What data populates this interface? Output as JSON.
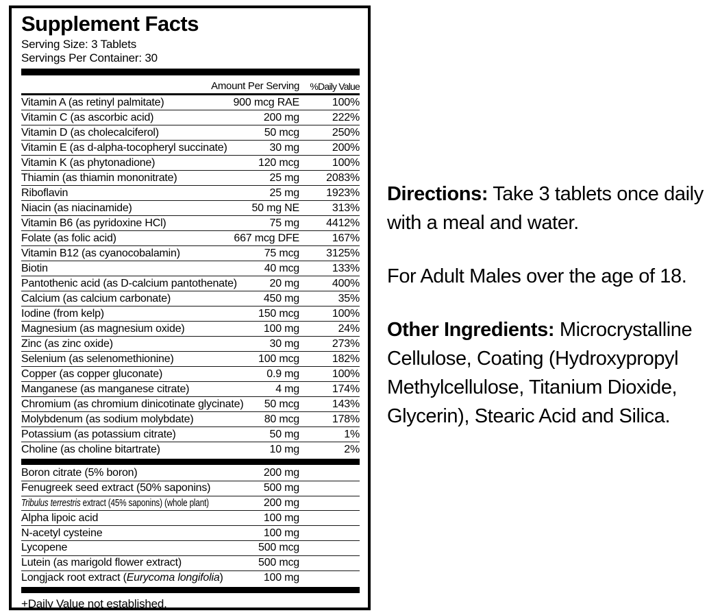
{
  "panel": {
    "title": "Supplement Facts",
    "serving_size": "Serving Size: 3 Tablets",
    "servings_per_container": "Servings Per Container: 30",
    "columns": {
      "amount": "Amount Per Serving",
      "daily_value": "%Daily Value"
    },
    "nutrients": [
      {
        "name": "Vitamin A (as retinyl palmitate)",
        "amount": "900 mcg RAE",
        "dv": "100%"
      },
      {
        "name": "Vitamin C (as ascorbic acid)",
        "amount": "200 mg",
        "dv": "222%"
      },
      {
        "name": "Vitamin D (as cholecalciferol)",
        "amount": "50 mcg",
        "dv": "250%"
      },
      {
        "name": "Vitamin E (as d-alpha-tocopheryl succinate)",
        "amount": "30 mg",
        "dv": "200%"
      },
      {
        "name": "Vitamin K (as phytonadione)",
        "amount": "120 mcg",
        "dv": "100%"
      },
      {
        "name": "Thiamin (as thiamin mononitrate)",
        "amount": "25 mg",
        "dv": "2083%"
      },
      {
        "name": "Riboflavin",
        "amount": "25 mg",
        "dv": "1923%"
      },
      {
        "name": "Niacin (as niacinamide)",
        "amount": "50 mg NE",
        "dv": "313%"
      },
      {
        "name": "Vitamin B6 (as pyridoxine HCl)",
        "amount": "75 mg",
        "dv": "4412%"
      },
      {
        "name": "Folate (as folic acid)",
        "amount": "667 mcg DFE",
        "dv": "167%"
      },
      {
        "name": "Vitamin B12 (as cyanocobalamin)",
        "amount": "75 mcg",
        "dv": "3125%"
      },
      {
        "name": "Biotin",
        "amount": "40 mcg",
        "dv": "133%"
      },
      {
        "name": "Pantothenic acid (as D-calcium pantothenate)",
        "amount": "20 mg",
        "dv": "400%"
      },
      {
        "name": "Calcium (as calcium carbonate)",
        "amount": "450 mg",
        "dv": "35%"
      },
      {
        "name": "Iodine (from kelp)",
        "amount": "150 mcg",
        "dv": "100%"
      },
      {
        "name": "Magnesium (as magnesium oxide)",
        "amount": "100 mg",
        "dv": "24%"
      },
      {
        "name": "Zinc (as zinc oxide)",
        "amount": "30 mg",
        "dv": "273%"
      },
      {
        "name": "Selenium (as selenomethionine)",
        "amount": "100 mcg",
        "dv": "182%"
      },
      {
        "name": "Copper (as copper gluconate)",
        "amount": "0.9 mg",
        "dv": "100%"
      },
      {
        "name": "Manganese (as manganese citrate)",
        "amount": "4 mg",
        "dv": "174%"
      },
      {
        "name": "Chromium (as chromium dinicotinate glycinate)",
        "amount": "50 mcg",
        "dv": "143%"
      },
      {
        "name": "Molybdenum (as sodium molybdate)",
        "amount": "80 mcg",
        "dv": "178%"
      },
      {
        "name": "Potassium (as potassium citrate)",
        "amount": "50 mg",
        "dv": "1%"
      },
      {
        "name": "Choline (as choline bitartrate)",
        "amount": "10 mg",
        "dv": "2%"
      }
    ],
    "botanicals": [
      {
        "name": "Boron citrate (5% boron)",
        "amount": "200 mg"
      },
      {
        "name": "Fenugreek seed extract (50% saponins)",
        "amount": "500 mg"
      },
      {
        "name_parts": [
          {
            "text": "Tribulus terrestris",
            "italic": true
          },
          {
            "text": " extract (45% saponins) (whole plant)",
            "italic": false
          }
        ],
        "amount": "200 mg"
      },
      {
        "name": "Alpha lipoic acid",
        "amount": "100 mg"
      },
      {
        "name": "N-acetyl cysteine",
        "amount": "100 mg"
      },
      {
        "name": "Lycopene",
        "amount": "500 mcg"
      },
      {
        "name": "Lutein (as marigold flower extract)",
        "amount": "500 mcg"
      },
      {
        "name_parts": [
          {
            "text": "Longjack root extract (",
            "italic": false
          },
          {
            "text": "Eurycoma longifolia",
            "italic": true
          },
          {
            "text": ")",
            "italic": false
          }
        ],
        "amount": "100 mg"
      }
    ],
    "footnote": "+Daily Value not established."
  },
  "info": {
    "directions_label": "Directions:",
    "directions_text": " Take 3 tablets once daily with a meal and water.",
    "audience": "For Adult Males over the age of 18.",
    "other_ingredients_label": "Other Ingredients:",
    "other_ingredients_text": " Microcrystalline Cellulose, Coating (Hydroxypropyl Methylcellulose, Titanium Dioxide, Glycerin), Stearic Acid and Silica."
  },
  "colors": {
    "text": "#000000",
    "background": "#ffffff",
    "rule": "#161616"
  }
}
